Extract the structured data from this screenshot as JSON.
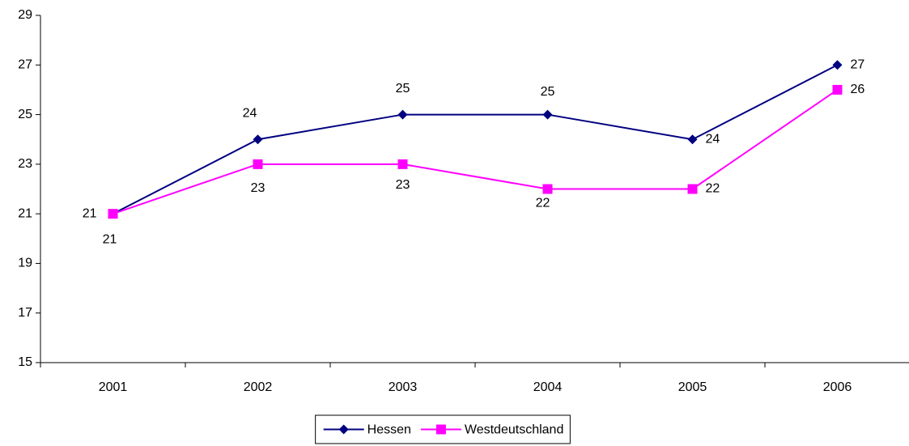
{
  "chart_data": {
    "type": "line",
    "categories": [
      "2001",
      "2002",
      "2003",
      "2004",
      "2005",
      "2006"
    ],
    "series": [
      {
        "name": "Hessen",
        "color": "#000080",
        "marker": "diamond",
        "values": [
          21,
          24,
          25,
          25,
          24,
          27
        ]
      },
      {
        "name": "Westdeutschland",
        "color": "#ff00ff",
        "marker": "square",
        "values": [
          21,
          23,
          23,
          22,
          22,
          26
        ]
      }
    ],
    "ylim": [
      15,
      29
    ],
    "yticks": [
      15,
      17,
      19,
      21,
      23,
      25,
      27,
      29
    ],
    "grid": false,
    "legend": "bottom"
  }
}
